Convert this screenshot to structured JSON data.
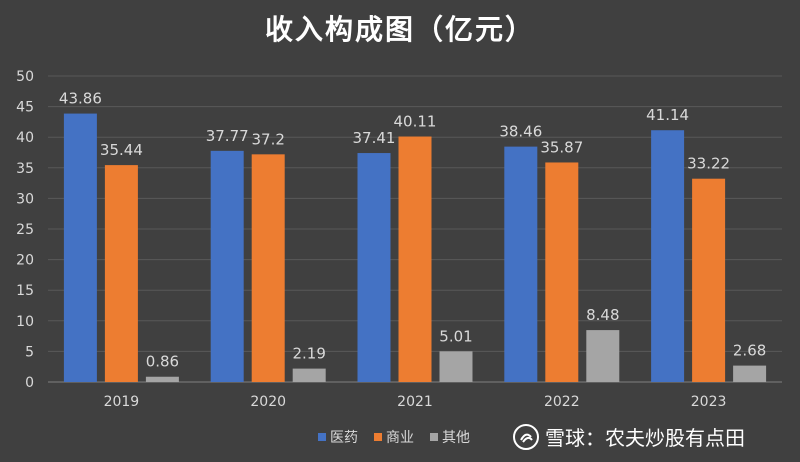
{
  "chart_data": {
    "type": "bar",
    "title": "收入构成图（亿元）",
    "categories": [
      "2019",
      "2020",
      "2021",
      "2022",
      "2023"
    ],
    "series": [
      {
        "name": "医药",
        "color": "#4472c4",
        "values": [
          43.86,
          37.77,
          37.41,
          38.46,
          41.14
        ]
      },
      {
        "name": "商业",
        "color": "#ed7d31",
        "values": [
          35.44,
          37.2,
          40.11,
          35.87,
          33.22
        ]
      },
      {
        "name": "其他",
        "color": "#a5a5a5",
        "values": [
          0.86,
          2.19,
          5.01,
          8.48,
          2.68
        ]
      }
    ],
    "ylim": [
      0,
      50
    ],
    "yticks": [
      0,
      5,
      10,
      15,
      20,
      25,
      30,
      35,
      40,
      45,
      50
    ],
    "xlabel": "",
    "ylabel": "",
    "grid": true,
    "legend": "bottom",
    "data_labels": true
  },
  "watermark": {
    "text": "雪球：农夫炒股有点田",
    "icon": "snowball-logo-icon"
  },
  "colors": {
    "background": "#404040",
    "gridline": "#595959",
    "axis_text": "#d9d9d9",
    "label_text": "#d9d9d9"
  }
}
